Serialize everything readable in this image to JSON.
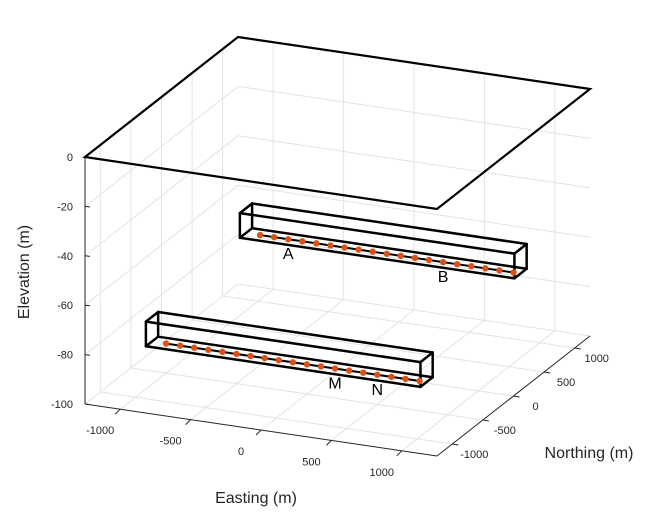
{
  "chart_data": {
    "type": "line",
    "projection": "3d",
    "grid": true,
    "colors": {
      "grid": "#e3e3e3",
      "axis": "#262626",
      "box": "#000000",
      "points": "#D95319",
      "line": "#000000"
    },
    "axes": {
      "x": {
        "label": "Easting (m)",
        "lim": [
          -1250,
          1250
        ],
        "ticks": [
          -1000,
          -500,
          0,
          500,
          1000
        ],
        "tick_labels": [
          "-1000",
          "-500",
          "0",
          "500",
          "1000"
        ]
      },
      "y": {
        "label": "Northing (m)",
        "lim": [
          -1250,
          1250
        ],
        "ticks": [
          -1000,
          -500,
          0,
          500,
          1000
        ],
        "tick_labels": [
          "-1000",
          "-500",
          "0",
          "500",
          "1000"
        ]
      },
      "z": {
        "label": "Elevation (m)",
        "lim": [
          -100,
          0
        ],
        "ticks": [
          -100,
          -80,
          -60,
          -40,
          -20,
          0
        ],
        "tick_labels": [
          "-100",
          "-80",
          "-60",
          "-40",
          "-20",
          "0"
        ]
      }
    },
    "surface": {
      "x": [
        -1250,
        1250
      ],
      "y": [
        -1250,
        1250
      ],
      "z": 0
    },
    "boxes": [
      {
        "x": [
          -650,
          1300
        ],
        "y": [
          -100,
          100
        ],
        "z": [
          -50,
          -40
        ]
      },
      {
        "x": [
          -1100,
          850
        ],
        "y": [
          -600,
          -400
        ],
        "z": [
          -88,
          -78
        ]
      }
    ],
    "series": [
      {
        "x_start": -550,
        "x_step": 100,
        "count": 19,
        "y": 0,
        "z": -50
      },
      {
        "x_start": -1000,
        "x_step": 100,
        "count": 19,
        "y": -500,
        "z": -88
      }
    ],
    "annotations": [
      {
        "text": "A",
        "x": -350,
        "y": 0,
        "z": -50
      },
      {
        "text": "B",
        "x": 750,
        "y": 0,
        "z": -50
      },
      {
        "text": "M",
        "x": 200,
        "y": -500,
        "z": -88
      },
      {
        "text": "N",
        "x": 500,
        "y": -500,
        "z": -88
      }
    ]
  }
}
